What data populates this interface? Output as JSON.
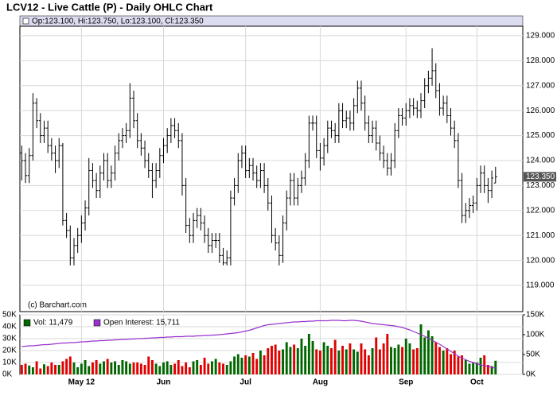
{
  "chart_data": [
    {
      "type": "ohlc",
      "title": "LCV12 - Live Cattle (P) - Daily OHLC Chart",
      "ohlc_label": "Op:123.100, Hi:123.750, Lo:123.100, Cl:123.350",
      "last_price_label": "123.350",
      "copyright": "(c) Barchart.com",
      "color": "#000000",
      "grid": true,
      "xlim": [
        -0.5,
        134.3
      ],
      "ylim": [
        117.95,
        129.38
      ],
      "yticks": [
        {
          "value": 119,
          "label": "119.000"
        },
        {
          "value": 120,
          "label": "120.000"
        },
        {
          "value": 121,
          "label": "121.000"
        },
        {
          "value": 122,
          "label": "122.000"
        },
        {
          "value": 123,
          "label": "123.000"
        },
        {
          "value": 124,
          "label": "124.000"
        },
        {
          "value": 125,
          "label": "125.000"
        },
        {
          "value": 126,
          "label": "126.000"
        },
        {
          "value": 127,
          "label": "127.000"
        },
        {
          "value": 128,
          "label": "128.000"
        },
        {
          "value": 129,
          "label": "129.000"
        }
      ],
      "open": [
        124.3,
        124.0,
        123.4,
        124.2,
        126.3,
        125.6,
        125.0,
        125.3,
        124.6,
        124.3,
        124.0,
        124.6,
        121.6,
        121.2,
        120.1,
        120.6,
        121.0,
        121.5,
        122.1,
        123.6,
        123.2,
        122.8,
        123.5,
        124.0,
        123.2,
        123.5,
        124.3,
        124.8,
        125.0,
        125.2,
        126.5,
        125.6,
        124.8,
        124.5,
        124.0,
        123.6,
        123.2,
        123.6,
        124.2,
        124.6,
        125.0,
        125.4,
        125.2,
        124.8,
        123.0,
        121.4,
        121.0,
        121.6,
        121.8,
        121.5,
        121.0,
        120.6,
        120.8,
        120.8,
        120.2,
        119.9,
        120.1,
        122.5,
        123.0,
        124.0,
        124.3,
        123.6,
        123.8,
        123.5,
        123.2,
        123.6,
        123.0,
        122.3,
        121.0,
        120.7,
        120.2,
        121.5,
        122.5,
        123.2,
        122.5,
        123.0,
        123.3,
        124.0,
        125.5,
        125.5,
        124.4,
        124.1,
        124.6,
        125.3,
        125.2,
        125.0,
        126.0,
        125.6,
        125.7,
        125.5,
        126.2,
        126.9,
        126.3,
        125.5,
        125.0,
        125.3,
        124.7,
        124.3,
        124.0,
        123.7,
        124.0,
        125.2,
        125.8,
        125.7,
        126.0,
        126.2,
        126.1,
        126.0,
        126.4,
        127.0,
        127.3,
        127.6,
        126.8,
        126.1,
        126.3,
        125.8,
        125.3,
        124.8,
        123.2,
        121.8,
        122.0,
        122.2,
        122.3,
        123.0,
        123.5,
        123.0,
        122.8,
        123.1
      ],
      "high": [
        124.6,
        124.3,
        124.5,
        126.7,
        126.5,
        125.9,
        125.6,
        125.6,
        124.9,
        124.6,
        124.9,
        124.7,
        121.9,
        121.4,
        120.9,
        121.3,
        121.8,
        122.4,
        124.1,
        123.9,
        123.5,
        123.8,
        124.3,
        124.3,
        123.8,
        124.6,
        125.1,
        125.3,
        125.5,
        127.1,
        126.8,
        125.9,
        125.1,
        124.8,
        124.3,
        123.9,
        123.9,
        124.5,
        124.9,
        125.3,
        125.7,
        125.7,
        125.5,
        125.1,
        123.3,
        121.7,
        121.9,
        122.1,
        122.1,
        121.8,
        121.3,
        121.1,
        121.1,
        121.1,
        120.5,
        120.4,
        122.8,
        123.3,
        124.3,
        124.6,
        124.6,
        124.1,
        124.1,
        123.8,
        123.9,
        123.9,
        123.3,
        122.6,
        121.3,
        121.0,
        121.8,
        122.8,
        123.5,
        123.5,
        123.3,
        123.6,
        124.3,
        125.8,
        125.8,
        125.8,
        124.7,
        124.9,
        125.6,
        125.6,
        125.5,
        126.3,
        126.3,
        126.0,
        126.0,
        126.5,
        127.2,
        127.2,
        126.6,
        125.8,
        125.6,
        125.6,
        125.0,
        124.6,
        124.3,
        124.3,
        125.5,
        126.1,
        126.1,
        126.3,
        126.5,
        126.5,
        126.4,
        126.7,
        127.3,
        127.6,
        128.5,
        127.9,
        127.1,
        126.6,
        126.6,
        126.1,
        125.6,
        125.1,
        123.5,
        122.3,
        122.5,
        122.6,
        123.3,
        123.8,
        123.8,
        123.3,
        123.6,
        123.75
      ],
      "low": [
        123.2,
        123.1,
        123.1,
        124.0,
        125.3,
        124.7,
        124.7,
        124.3,
        124.0,
        123.5,
        123.7,
        121.4,
        120.9,
        119.8,
        119.8,
        120.3,
        120.7,
        121.2,
        121.8,
        122.9,
        122.5,
        122.5,
        123.2,
        122.9,
        122.9,
        123.2,
        124.0,
        124.5,
        124.7,
        124.9,
        125.3,
        124.5,
        124.2,
        123.7,
        123.3,
        122.5,
        122.9,
        123.3,
        123.9,
        124.3,
        124.7,
        124.9,
        124.5,
        122.6,
        121.1,
        120.7,
        120.7,
        121.3,
        121.2,
        120.7,
        120.3,
        120.3,
        120.5,
        119.9,
        119.8,
        119.8,
        119.8,
        122.2,
        122.7,
        123.7,
        123.3,
        123.3,
        123.2,
        122.9,
        122.9,
        122.7,
        122.0,
        120.7,
        120.4,
        119.8,
        119.9,
        121.2,
        122.2,
        122.2,
        122.2,
        122.7,
        123.0,
        123.7,
        125.2,
        124.1,
        123.6,
        123.8,
        124.3,
        124.9,
        124.7,
        124.7,
        125.3,
        125.3,
        125.2,
        125.2,
        125.9,
        126.0,
        125.2,
        124.7,
        124.7,
        124.4,
        124.0,
        123.7,
        123.4,
        123.4,
        123.7,
        124.9,
        125.4,
        125.4,
        125.7,
        125.8,
        125.7,
        125.7,
        126.1,
        126.7,
        127.0,
        126.5,
        125.8,
        125.8,
        125.5,
        125.0,
        124.5,
        122.9,
        121.5,
        121.5,
        121.7,
        121.9,
        122.0,
        122.7,
        122.7,
        122.3,
        122.5,
        123.1
      ],
      "close": [
        124.0,
        123.4,
        124.2,
        126.3,
        125.6,
        125.0,
        125.3,
        124.6,
        124.3,
        124.0,
        124.6,
        121.6,
        121.2,
        120.1,
        120.6,
        121.0,
        121.5,
        122.1,
        123.6,
        123.2,
        122.8,
        123.5,
        124.0,
        123.2,
        123.5,
        124.3,
        124.8,
        125.0,
        125.2,
        126.5,
        125.6,
        124.8,
        124.5,
        124.0,
        123.6,
        123.2,
        123.6,
        124.2,
        124.6,
        125.0,
        125.4,
        125.2,
        124.8,
        123.0,
        121.4,
        121.0,
        121.6,
        121.8,
        121.5,
        121.0,
        120.6,
        120.8,
        120.8,
        120.2,
        119.9,
        120.1,
        122.5,
        123.0,
        124.0,
        124.3,
        123.6,
        123.8,
        123.5,
        123.2,
        123.6,
        123.0,
        122.3,
        121.0,
        120.7,
        120.2,
        121.5,
        122.5,
        123.2,
        122.5,
        123.0,
        123.3,
        124.0,
        125.5,
        125.5,
        124.4,
        124.1,
        124.6,
        125.3,
        125.2,
        125.0,
        126.0,
        125.6,
        125.7,
        125.5,
        126.2,
        126.9,
        126.3,
        125.5,
        125.0,
        125.3,
        124.7,
        124.3,
        124.0,
        123.7,
        124.0,
        125.2,
        125.8,
        125.7,
        126.0,
        126.2,
        126.1,
        126.0,
        126.4,
        127.0,
        127.3,
        127.6,
        126.8,
        126.1,
        126.3,
        125.8,
        125.3,
        124.8,
        123.2,
        121.8,
        122.0,
        122.2,
        122.3,
        123.0,
        123.5,
        123.0,
        122.8,
        123.3,
        123.35
      ]
    },
    {
      "type": "bar",
      "grid": true,
      "ylim": [
        0,
        50000
      ],
      "yticks": [
        {
          "value": 0,
          "label": "0K"
        },
        {
          "value": 10000,
          "label": "10K"
        },
        {
          "value": 20000,
          "label": "20K"
        },
        {
          "value": 30000,
          "label": "30K"
        },
        {
          "value": 40000,
          "label": "40K"
        },
        {
          "value": 50000,
          "label": "50K"
        }
      ],
      "y2lim": [
        0,
        150000
      ],
      "y2ticks": [
        {
          "value": 0,
          "label": "0K"
        },
        {
          "value": 50000,
          "label": "50K"
        },
        {
          "value": 100000,
          "label": "100K"
        },
        {
          "value": 150000,
          "label": "150K"
        }
      ],
      "xticks": [
        {
          "value": 16,
          "label": "May 12"
        },
        {
          "value": 38,
          "label": "Jun"
        },
        {
          "value": 60,
          "label": "Jul"
        },
        {
          "value": 80,
          "label": "Aug"
        },
        {
          "value": 103,
          "label": "Sep"
        },
        {
          "value": 122,
          "label": "Oct"
        }
      ],
      "series": [
        {
          "name": "Vol: 11,479",
          "color": "#006600",
          "up_color": "#006600",
          "down_color": "#e00000",
          "values": [
            8000,
            9000,
            7500,
            6000,
            11000,
            5000,
            8500,
            7000,
            10000,
            8000,
            8000,
            11000,
            13000,
            15000,
            10000,
            6000,
            9000,
            12000,
            7000,
            10000,
            12000,
            9000,
            11000,
            13000,
            10000,
            11000,
            8000,
            12000,
            11000,
            9000,
            10000,
            10000,
            9000,
            8000,
            15000,
            12000,
            9000,
            7000,
            10000,
            11000,
            8000,
            9000,
            12000,
            7000,
            10000,
            6000,
            11000,
            12000,
            8000,
            14000,
            9000,
            11000,
            13000,
            10000,
            9000,
            8000,
            11000,
            15000,
            17000,
            14000,
            16000,
            15000,
            18000,
            13000,
            20000,
            16000,
            22000,
            24000,
            25000,
            20000,
            21000,
            27000,
            23000,
            25000,
            22000,
            30000,
            24000,
            34000,
            28000,
            21000,
            20000,
            27000,
            24000,
            22000,
            29000,
            20000,
            24000,
            21000,
            26000,
            21000,
            19000,
            26000,
            21000,
            16000,
            22000,
            31000,
            21000,
            26000,
            34000,
            23000,
            22000,
            25000,
            23000,
            30000,
            26000,
            21000,
            22000,
            42000,
            31000,
            37000,
            32000,
            27000,
            23000,
            20000,
            22000,
            17000,
            20000,
            15000,
            16000,
            12000,
            9000,
            10000,
            10000,
            14000,
            16000,
            8000,
            7000,
            11479
          ]
        },
        {
          "name": "Open Interest: 15,711",
          "color": "#9933cc",
          "axis": "y2",
          "values": [
            70000,
            71000,
            72000,
            72000,
            73000,
            74000,
            75000,
            75000,
            76000,
            77000,
            78000,
            79000,
            79000,
            80000,
            80000,
            81000,
            82000,
            82000,
            83000,
            84000,
            84000,
            85000,
            85000,
            86000,
            86000,
            87000,
            87000,
            88000,
            88000,
            89000,
            89000,
            90000,
            90000,
            91000,
            91000,
            92000,
            92000,
            93000,
            93000,
            94000,
            94000,
            95000,
            95000,
            95000,
            96000,
            96000,
            96000,
            97000,
            97000,
            98000,
            98000,
            99000,
            99000,
            100000,
            101000,
            102000,
            103000,
            104000,
            105000,
            107000,
            109000,
            111000,
            114000,
            117000,
            120000,
            123000,
            125000,
            126000,
            127000,
            128000,
            129000,
            130000,
            131000,
            132000,
            132000,
            133000,
            133000,
            134000,
            134000,
            135000,
            135000,
            135000,
            135000,
            136000,
            136000,
            136000,
            135000,
            135000,
            136000,
            136000,
            135000,
            134000,
            132000,
            130000,
            128000,
            127000,
            126000,
            125000,
            124000,
            123000,
            122000,
            120000,
            118000,
            115000,
            112000,
            108000,
            104000,
            100000,
            96000,
            91000,
            86000,
            81000,
            76000,
            70000,
            64000,
            58000,
            52000,
            46000,
            41000,
            37000,
            33000,
            30000,
            27000,
            24000,
            22000,
            20000,
            18000,
            15711
          ]
        }
      ]
    }
  ]
}
